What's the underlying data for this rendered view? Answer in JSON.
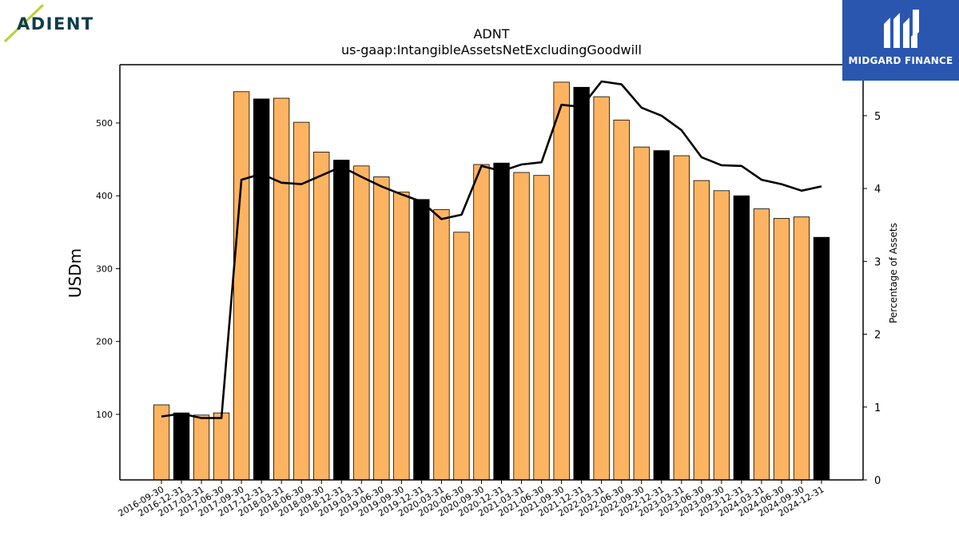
{
  "logos": {
    "left_text": "ADIENT",
    "right_text": "MIDGARD FINANCE"
  },
  "colors": {
    "bar_default": "#FDB462",
    "bar_highlight": "#000000",
    "line": "#000000",
    "brand_left": "#0d3d4a",
    "brand_left_accent": "#b5d334",
    "brand_right": "#2a56b0"
  },
  "chart_data": {
    "type": "bar",
    "title": "ADNT",
    "subtitle": "us-gaap:IntangibleAssetsNetExcludingGoodwill",
    "ylabel": "USDm",
    "y2label": "Percentage of Assets",
    "ylim": [
      10,
      580
    ],
    "y2lim": [
      0,
      5.7
    ],
    "yticks": [
      100,
      200,
      300,
      400,
      500
    ],
    "y2ticks": [
      0,
      1,
      2,
      3,
      4,
      5
    ],
    "categories": [
      "2016-09-30",
      "2016-12-31",
      "2017-03-31",
      "2017-06-30",
      "2017-09-30",
      "2017-12-31",
      "2018-03-31",
      "2018-06-30",
      "2018-09-30",
      "2018-12-31",
      "2019-03-31",
      "2019-06-30",
      "2019-09-30",
      "2019-12-31",
      "2020-03-31",
      "2020-06-30",
      "2020-09-30",
      "2020-12-31",
      "2021-03-31",
      "2021-06-30",
      "2021-09-30",
      "2021-12-31",
      "2022-03-31",
      "2022-06-30",
      "2022-09-30",
      "2022-12-31",
      "2023-03-31",
      "2023-06-30",
      "2023-09-30",
      "2023-12-31",
      "2024-03-31",
      "2024-06-30",
      "2024-09-30",
      "2024-12-31"
    ],
    "highlight_categories": [
      "2016-12-31",
      "2017-12-31",
      "2018-12-31",
      "2019-12-31",
      "2020-12-31",
      "2021-12-31",
      "2022-12-31",
      "2023-12-31",
      "2024-12-31"
    ],
    "series": [
      {
        "type": "bar",
        "axis": "left",
        "values": [
          113,
          102,
          99,
          102,
          543,
          533,
          534,
          501,
          460,
          449,
          441,
          426,
          405,
          395,
          381,
          350,
          443,
          445,
          432,
          428,
          556,
          549,
          536,
          504,
          467,
          462,
          455,
          421,
          407,
          400,
          382,
          369,
          371,
          343
        ]
      },
      {
        "type": "line",
        "axis": "right",
        "values": [
          0.87,
          0.91,
          0.85,
          0.85,
          4.12,
          4.2,
          4.08,
          4.06,
          4.18,
          4.3,
          4.16,
          4.03,
          3.92,
          3.82,
          3.58,
          3.64,
          4.31,
          4.24,
          4.33,
          4.36,
          5.15,
          5.12,
          5.47,
          5.43,
          5.11,
          5.0,
          4.8,
          4.43,
          4.32,
          4.31,
          4.12,
          4.06,
          3.97,
          4.03
        ]
      }
    ]
  }
}
